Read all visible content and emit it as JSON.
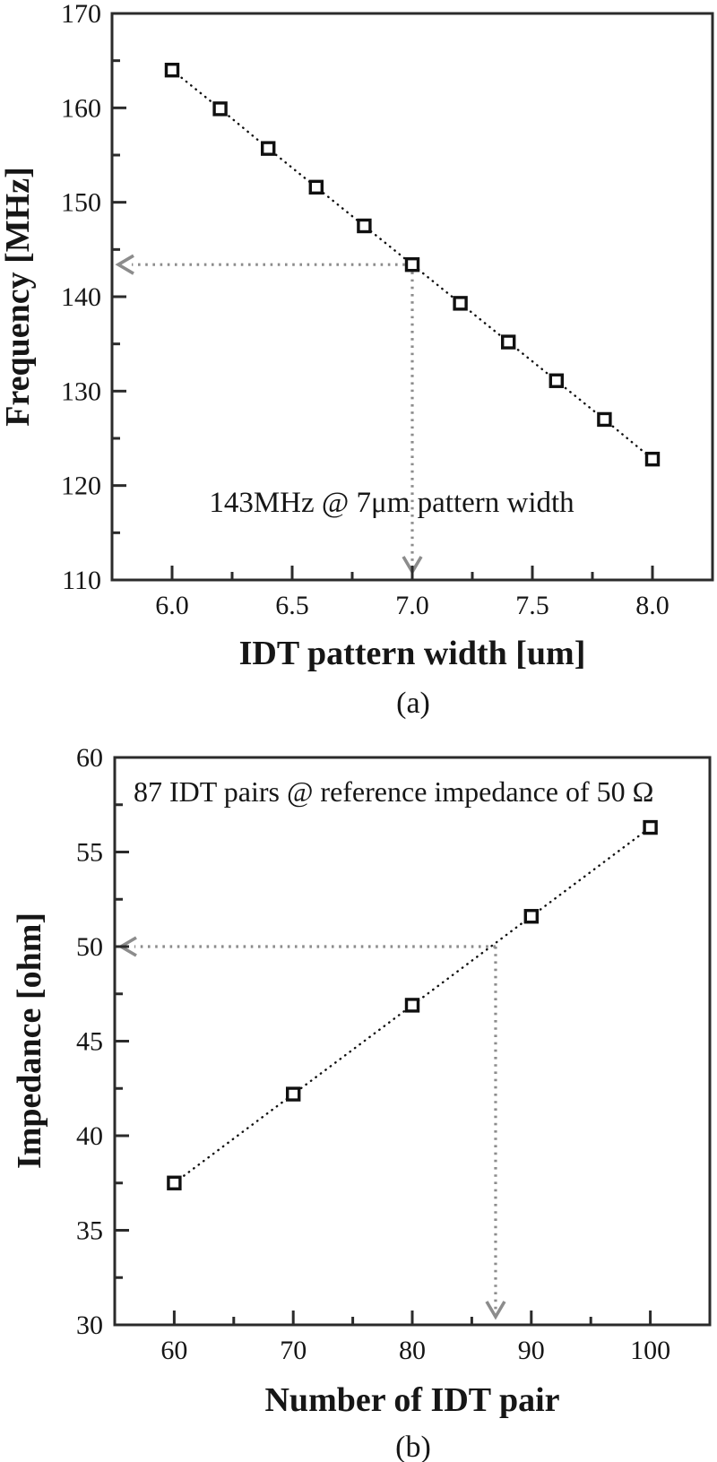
{
  "page": {
    "background": "#ffffff"
  },
  "colors": {
    "frame": "#2b2b2b",
    "text": "#161616",
    "data": "#101010",
    "marker_fill": "#ffffff",
    "guide": "#8c8c8c"
  },
  "panels": [
    {
      "label": "(a)"
    },
    {
      "label": "(b)"
    }
  ],
  "chart_data": [
    {
      "type": "scatter",
      "title": "",
      "xlabel": "IDT pattern width [um]",
      "ylabel": "Frequency [MHz]",
      "annotation": "143MHz @ 7μm pattern width",
      "x": [
        6.0,
        6.2,
        6.4,
        6.6,
        6.8,
        7.0,
        7.2,
        7.4,
        7.6,
        7.8,
        8.0
      ],
      "y": [
        164.0,
        159.9,
        155.7,
        151.6,
        147.5,
        143.4,
        139.3,
        135.2,
        131.1,
        127.0,
        122.8
      ],
      "xlim": [
        5.75,
        8.25
      ],
      "ylim": [
        110,
        170
      ],
      "x_major_ticks": [
        6.0,
        6.5,
        7.0,
        7.5,
        8.0
      ],
      "x_tick_labels": [
        "6.0",
        "6.5",
        "7.0",
        "7.5",
        "8.0"
      ],
      "x_minor_ticks": [
        6.25,
        6.75,
        7.25,
        7.75
      ],
      "y_major_ticks": [
        170,
        160,
        150,
        140,
        130,
        120,
        110
      ],
      "y_tick_labels": [
        "170",
        "160",
        "150",
        "140",
        "130",
        "120",
        "110"
      ],
      "y_minor_ticks": [
        165,
        155,
        145,
        135,
        125,
        115
      ],
      "marker": "open-square",
      "line_style": "dotted",
      "grid": false,
      "legend": null,
      "guide": {
        "x": 7.0,
        "y": 143.4
      }
    },
    {
      "type": "scatter",
      "title": "",
      "xlabel": "Number of IDT pair",
      "ylabel": "Impedance [ohm]",
      "annotation": "87 IDT pairs @ reference impedance of 50 Ω",
      "x": [
        60,
        70,
        80,
        90,
        100
      ],
      "y": [
        37.5,
        42.2,
        46.9,
        51.6,
        56.3
      ],
      "xlim": [
        55,
        105
      ],
      "ylim": [
        30,
        60
      ],
      "x_major_ticks": [
        60,
        70,
        80,
        90,
        100
      ],
      "x_tick_labels": [
        "60",
        "70",
        "80",
        "90",
        "100"
      ],
      "x_minor_ticks": [
        65,
        75,
        85,
        95
      ],
      "y_major_ticks": [
        60,
        55,
        50,
        45,
        40,
        35,
        30
      ],
      "y_tick_labels": [
        "60",
        "55",
        "50",
        "45",
        "40",
        "35",
        "30"
      ],
      "y_minor_ticks": [
        57.5,
        52.5,
        47.5,
        42.5,
        37.5,
        32.5
      ],
      "marker": "open-square",
      "line_style": "dotted",
      "grid": false,
      "legend": null,
      "guide": {
        "x": 87,
        "y": 50
      }
    }
  ]
}
